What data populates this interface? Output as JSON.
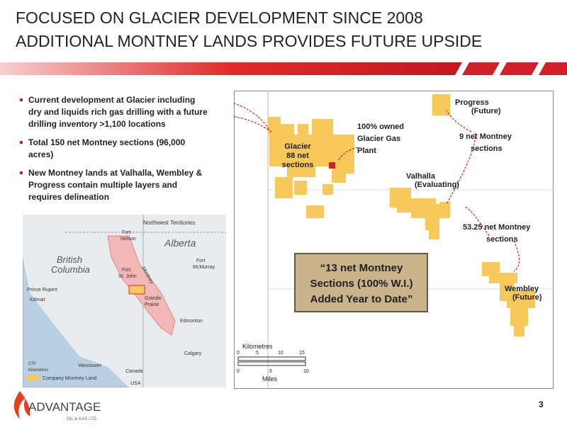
{
  "header": {
    "title_lines": [
      "FOCUSED ON GLACIER DEVELOPMENT SINCE 2008",
      "ADDITIONAL MONTNEY LANDS PROVIDES FUTURE UPSIDE"
    ]
  },
  "bullets": [
    [
      "Current development at Glacier including",
      "dry and liquids rich gas drilling with a future",
      "drilling inventory >1,100 locations"
    ],
    [
      "Total 150 net Montney sections (96,000",
      "acres)"
    ],
    [
      "New Montney lands at Valhalla, Wembley &",
      "Progress contain multiple layers and",
      "requires delineation"
    ]
  ],
  "inset_map": {
    "labels": [
      "Northwest Territories",
      "Fort",
      "Nelson",
      "Alberta",
      "British",
      "Columbia",
      "Fort",
      "St. John",
      "Montney",
      "Fort",
      "McMurray",
      "Prince Rupert",
      "Kitimat",
      "Grande",
      "Prairie",
      "Edmonton",
      "Calgary",
      "Vancouver",
      "Canada",
      "USA",
      "270",
      "Kilometres"
    ],
    "legend": "Company Montney Land"
  },
  "main_map": {
    "progress": [
      "Progress",
      "(Future)"
    ],
    "progress_note": [
      "9 net Montney",
      "sections"
    ],
    "plant": [
      "100% owned",
      "Glacier Gas",
      "Plant"
    ],
    "glacier": [
      "Glacier",
      "88 net",
      "sections"
    ],
    "valhalla": [
      "Valhalla",
      "(Evaluating)"
    ],
    "valhalla_note": [
      "53.25 net Montney",
      "sections"
    ],
    "wembley": [
      "Wembley",
      "(Future)"
    ],
    "callout": [
      "“13 net Montney",
      "Sections (100% W.I.)",
      "Added Year to Date”"
    ],
    "scale": {
      "km_title": "Kilometres",
      "km_ticks": [
        "0",
        "5",
        "10",
        "15"
      ],
      "mi_title": "Miles",
      "mi_ticks": [
        "0",
        "5",
        "10"
      ]
    }
  },
  "footer": {
    "logo": "ADVANTAGE",
    "logo_sub": "OIL & GAS LTD.",
    "page": "3"
  }
}
